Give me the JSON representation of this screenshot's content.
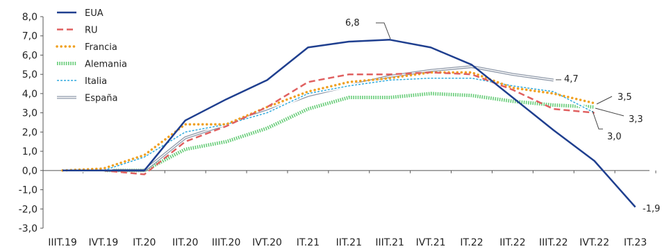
{
  "chart_data": {
    "type": "line",
    "categories": [
      "IIIT.19",
      "IVT.19",
      "IT.20",
      "IIT.20",
      "IIIT.20",
      "IVT.20",
      "IT.21",
      "IIT.21",
      "IIIT.21",
      "IVT.21",
      "IT.22",
      "IIT.22",
      "IIIT.22",
      "IVT.22",
      "IT.23"
    ],
    "ylim": [
      -3,
      8
    ],
    "ytick_step": 1,
    "grid": false,
    "legend_position": "top-left",
    "series": [
      {
        "name": "EUA",
        "color": "#1f3f8f",
        "style": "solid",
        "values": [
          0.0,
          0.0,
          0.0,
          2.6,
          3.7,
          4.7,
          6.4,
          6.7,
          6.8,
          6.4,
          5.5,
          3.8,
          2.1,
          0.5,
          -1.9
        ]
      },
      {
        "name": "RU",
        "color": "#e06060",
        "style": "dashed",
        "values": [
          0.0,
          0.0,
          -0.2,
          1.5,
          2.3,
          3.3,
          4.6,
          5.0,
          5.0,
          5.1,
          5.0,
          4.2,
          3.2,
          3.0,
          null
        ]
      },
      {
        "name": "Francia",
        "color": "#f0a020",
        "style": "dotted",
        "values": [
          0.0,
          0.1,
          0.8,
          2.4,
          2.4,
          3.3,
          4.1,
          4.6,
          4.8,
          5.1,
          5.1,
          4.3,
          4.0,
          3.5,
          null
        ]
      },
      {
        "name": "Alemania",
        "color": "#66cc77",
        "style": "thick-dotted",
        "values": [
          0.0,
          0.0,
          0.0,
          1.1,
          1.5,
          2.2,
          3.2,
          3.8,
          3.8,
          4.0,
          3.9,
          3.6,
          3.4,
          3.3,
          null
        ]
      },
      {
        "name": "Italia",
        "color": "#30aadd",
        "style": "diamond",
        "values": [
          0.0,
          0.0,
          0.7,
          2.0,
          2.4,
          3.0,
          4.0,
          4.4,
          4.7,
          4.8,
          4.8,
          4.4,
          4.1,
          3.0,
          null
        ]
      },
      {
        "name": "España",
        "color": "#8e98a8",
        "style": "double",
        "values": [
          0.0,
          0.0,
          0.0,
          1.7,
          2.4,
          3.1,
          3.9,
          4.4,
          4.9,
          5.2,
          5.4,
          5.0,
          4.7,
          null,
          null
        ]
      }
    ],
    "annotations": [
      {
        "text": "6,8",
        "value": 6.8
      },
      {
        "text": "4,7",
        "value": 4.7
      },
      {
        "text": "3,5",
        "value": 3.5
      },
      {
        "text": "3,3",
        "value": 3.3
      },
      {
        "text": "3,0",
        "value": 3.0
      },
      {
        "text": "-1,9",
        "value": -1.9
      }
    ]
  },
  "y_tick_labels": [
    "8,0",
    "7,0",
    "6,0",
    "5,0",
    "4,0",
    "3,0",
    "2,0",
    "1,0",
    "0,0",
    "-1,0",
    "-2,0",
    "-3,0"
  ]
}
